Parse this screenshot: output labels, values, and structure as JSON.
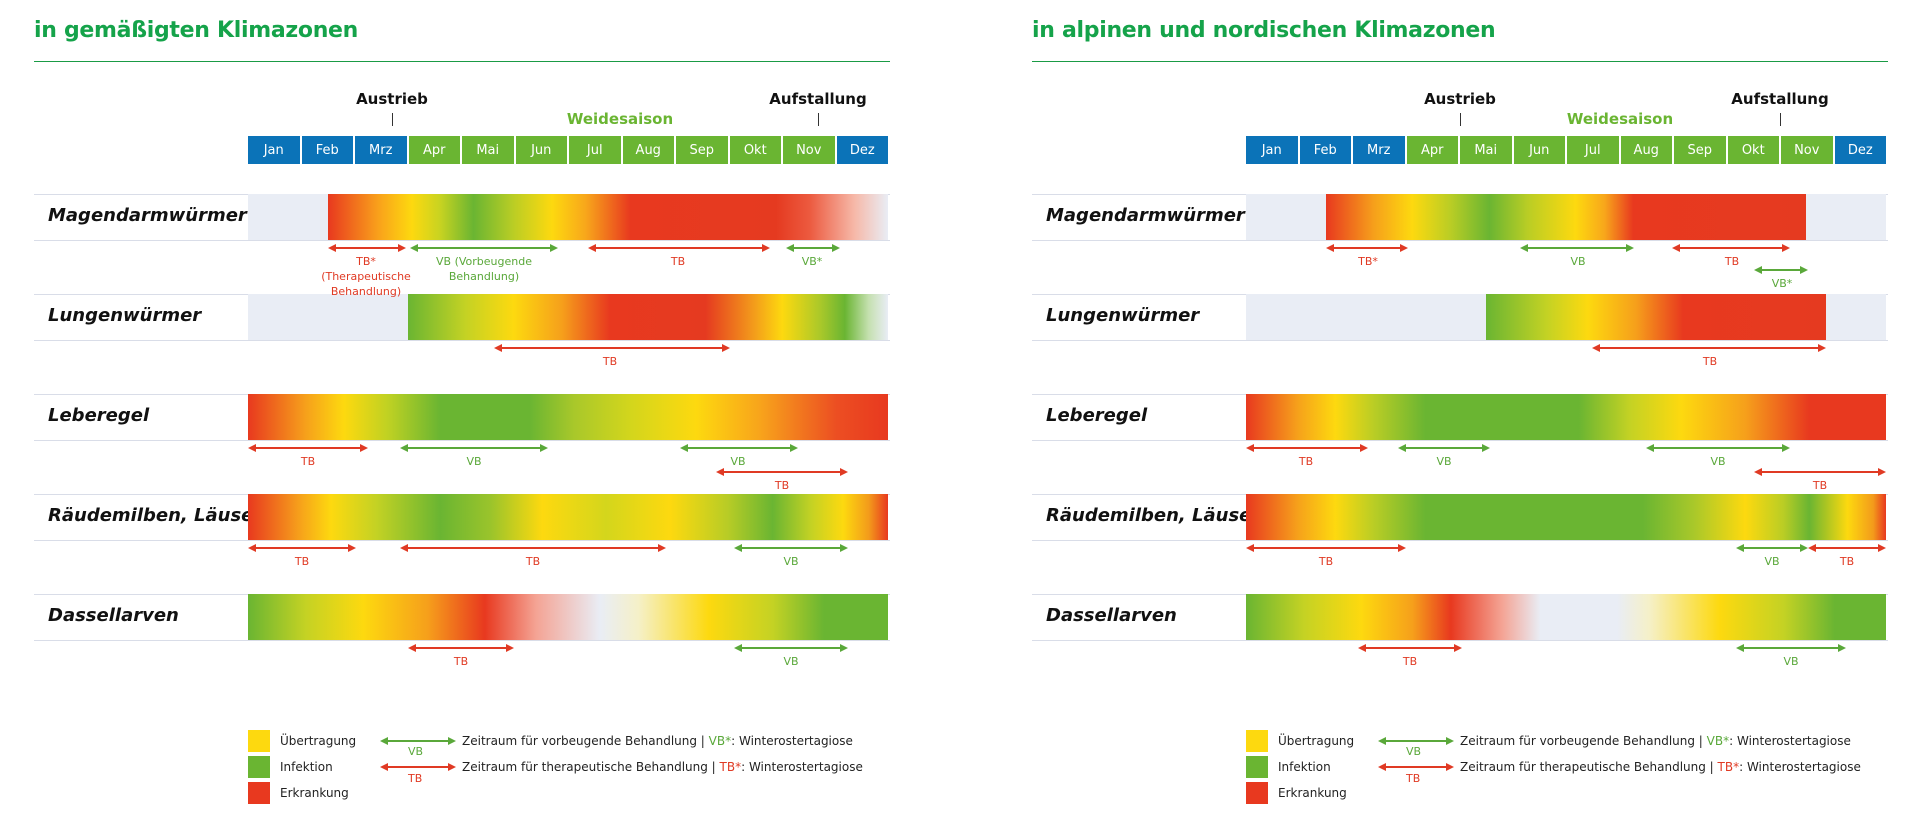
{
  "months": [
    "Jan",
    "Feb",
    "Mrz",
    "Apr",
    "Mai",
    "Jun",
    "Jul",
    "Aug",
    "Sep",
    "Okt",
    "Nov",
    "Dez"
  ],
  "colors": {
    "title": "#15a34a",
    "month_blue": "#0b73b8",
    "month_green": "#6ab532",
    "red": "#e03a24",
    "green": "#5aa83a",
    "yellow": "#fdd90f",
    "track": "#e9edf5"
  },
  "labels": {
    "austrieb": "Austrieb",
    "aufstallung": "Aufstallung",
    "weidesaison": "Weidesaison",
    "rows": [
      "Magendarmwürmer",
      "Lungenwürmer",
      "Leberegel",
      "Räudemilben, Läuse",
      "Dassellarven"
    ]
  },
  "left": {
    "title": "in gemäßigten Klimazonen",
    "arrows": {
      "r0a": "TB* (Therapeutische Behandlung)",
      "r0b": "VB (Vorbeugende Behandlung)",
      "r0c": "TB",
      "r0d": "VB*",
      "r1a": "TB",
      "r2a": "TB",
      "r2b": "VB",
      "r2c": "VB",
      "r2d": "TB",
      "r3a": "TB",
      "r3b": "TB",
      "r3c": "VB",
      "r4a": "TB",
      "r4b": "VB"
    }
  },
  "right": {
    "title": "in alpinen und nordischen Klimazonen",
    "arrows": {
      "r0a": "TB*",
      "r0b": "VB",
      "r0c": "TB",
      "r0d": "VB*",
      "r1a": "TB",
      "r2a": "TB",
      "r2b": "VB",
      "r2c": "VB",
      "r2d": "TB",
      "r3a": "TB",
      "r3b": "VB",
      "r3c": "TB",
      "r4a": "TB",
      "r4b": "VB"
    }
  },
  "legend": {
    "transmission": "Übertragung",
    "infection": "Infektion",
    "disease": "Erkrankung",
    "vb_tag": "VB",
    "tb_tag": "TB",
    "vb_text_a": "Zeitraum für vorbeugende Behandlung | ",
    "vb_text_b": "VB*",
    "vb_text_c": ": Winterostertagiose",
    "tb_text_a": "Zeitraum für therapeutische Behandlung | ",
    "tb_text_b": "TB*",
    "tb_text_c": ": Winterostertagiose"
  }
}
